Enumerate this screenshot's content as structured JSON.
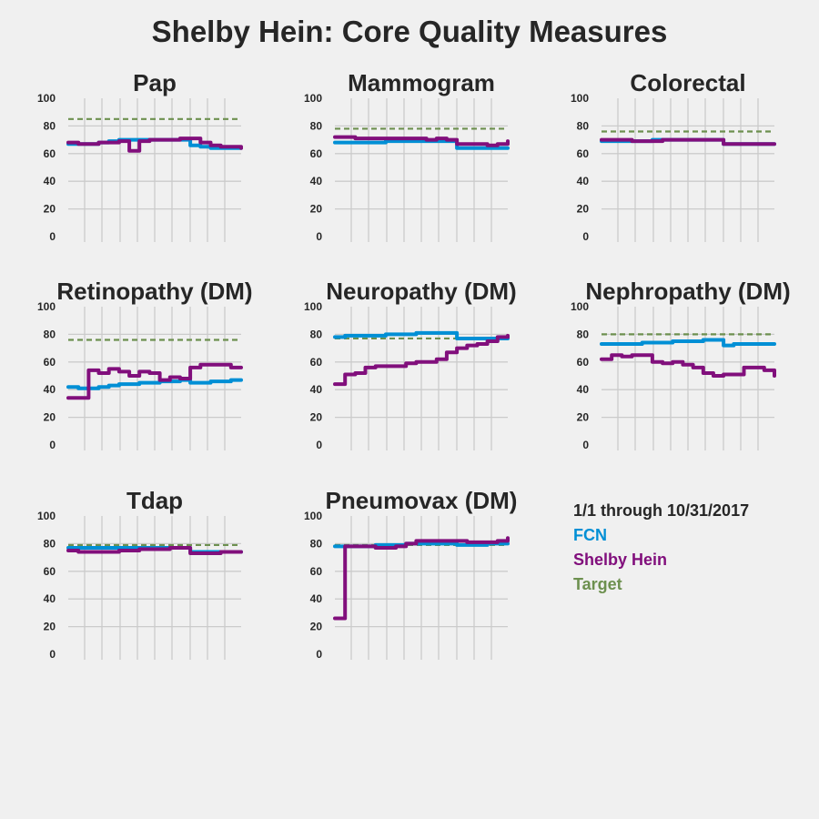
{
  "title": "Shelby Hein: Core Quality Measures",
  "colors": {
    "fcn": "#008fd5",
    "shelby": "#810f7c",
    "target": "#6d904f"
  },
  "legend": {
    "heading": "1/1 through 10/31/2017",
    "items": [
      {
        "label": "FCN",
        "color": "#008fd5"
      },
      {
        "label": "Shelby Hein",
        "color": "#810f7c"
      },
      {
        "label": "Target",
        "color": "#6d904f"
      }
    ]
  },
  "y_ticks": [
    "0",
    "20",
    "40",
    "60",
    "80",
    "100"
  ],
  "chart_data": [
    {
      "type": "line",
      "title": "Pap",
      "ylim": [
        0,
        100
      ],
      "target": 85,
      "series": [
        {
          "name": "FCN",
          "values": [
            67,
            67,
            67,
            68,
            69,
            70,
            70,
            70,
            70,
            70,
            70,
            70,
            66,
            65,
            64,
            64,
            64,
            64
          ]
        },
        {
          "name": "Shelby Hein",
          "values": [
            68,
            67,
            67,
            68,
            68,
            69,
            62,
            69,
            70,
            70,
            70,
            71,
            71,
            68,
            66,
            65,
            65,
            64
          ]
        }
      ]
    },
    {
      "type": "line",
      "title": "Mammogram",
      "ylim": [
        0,
        100
      ],
      "target": 78,
      "series": [
        {
          "name": "FCN",
          "values": [
            68,
            68,
            68,
            68,
            68,
            69,
            69,
            69,
            69,
            69,
            69,
            69,
            64,
            64,
            64,
            64,
            64,
            64
          ]
        },
        {
          "name": "Shelby Hein",
          "values": [
            72,
            72,
            71,
            71,
            71,
            71,
            71,
            71,
            71,
            70,
            71,
            70,
            67,
            67,
            67,
            66,
            67,
            69
          ]
        }
      ]
    },
    {
      "type": "line",
      "title": "Colorectal",
      "ylim": [
        0,
        100
      ],
      "target": 76,
      "series": [
        {
          "name": "FCN",
          "values": [
            69,
            69,
            69,
            69,
            69,
            70,
            70,
            70,
            70,
            70,
            70,
            70,
            67,
            67,
            67,
            67,
            67,
            67
          ]
        },
        {
          "name": "Shelby Hein",
          "values": [
            70,
            70,
            70,
            69,
            69,
            69,
            70,
            70,
            70,
            70,
            70,
            70,
            67,
            67,
            67,
            67,
            67,
            67
          ]
        }
      ]
    },
    {
      "type": "line",
      "title": "Retinopathy (DM)",
      "ylim": [
        0,
        100
      ],
      "target": 76,
      "series": [
        {
          "name": "FCN",
          "values": [
            42,
            41,
            41,
            42,
            43,
            44,
            44,
            45,
            45,
            46,
            46,
            47,
            45,
            45,
            46,
            46,
            47,
            47
          ]
        },
        {
          "name": "Shelby Hein",
          "values": [
            34,
            34,
            54,
            52,
            55,
            53,
            50,
            53,
            52,
            47,
            49,
            48,
            56,
            58,
            58,
            58,
            56,
            56
          ]
        }
      ]
    },
    {
      "type": "line",
      "title": "Neuropathy (DM)",
      "ylim": [
        0,
        100
      ],
      "target": 77,
      "series": [
        {
          "name": "FCN",
          "values": [
            78,
            79,
            79,
            79,
            79,
            80,
            80,
            80,
            81,
            81,
            81,
            81,
            77,
            77,
            77,
            77,
            77,
            77
          ]
        },
        {
          "name": "Shelby Hein",
          "values": [
            44,
            51,
            52,
            56,
            57,
            57,
            57,
            59,
            60,
            60,
            62,
            67,
            70,
            72,
            73,
            75,
            78,
            79
          ]
        }
      ]
    },
    {
      "type": "line",
      "title": "Nephropathy (DM)",
      "ylim": [
        0,
        100
      ],
      "target": 80,
      "series": [
        {
          "name": "FCN",
          "values": [
            73,
            73,
            73,
            73,
            74,
            74,
            74,
            75,
            75,
            75,
            76,
            76,
            72,
            73,
            73,
            73,
            73,
            73
          ]
        },
        {
          "name": "Shelby Hein",
          "values": [
            62,
            65,
            64,
            65,
            65,
            60,
            59,
            60,
            58,
            56,
            52,
            50,
            51,
            51,
            56,
            56,
            54,
            50
          ]
        }
      ]
    },
    {
      "type": "line",
      "title": "Tdap",
      "ylim": [
        0,
        100
      ],
      "target": 79,
      "series": [
        {
          "name": "FCN",
          "values": [
            77,
            77,
            77,
            77,
            77,
            77,
            77,
            77,
            77,
            77,
            77,
            77,
            74,
            74,
            74,
            74,
            74,
            74
          ]
        },
        {
          "name": "Shelby Hein",
          "values": [
            75,
            74,
            74,
            74,
            74,
            75,
            75,
            76,
            76,
            76,
            77,
            77,
            73,
            73,
            73,
            74,
            74,
            74
          ]
        }
      ]
    },
    {
      "type": "line",
      "title": "Pneumovax (DM)",
      "ylim": [
        0,
        100
      ],
      "target": 79,
      "series": [
        {
          "name": "FCN",
          "values": [
            78,
            78,
            78,
            78,
            79,
            79,
            79,
            80,
            80,
            80,
            80,
            80,
            79,
            79,
            79,
            80,
            80,
            80
          ]
        },
        {
          "name": "Shelby Hein",
          "values": [
            26,
            78,
            78,
            78,
            77,
            77,
            78,
            80,
            82,
            82,
            82,
            82,
            82,
            81,
            81,
            81,
            82,
            84
          ]
        }
      ]
    }
  ]
}
